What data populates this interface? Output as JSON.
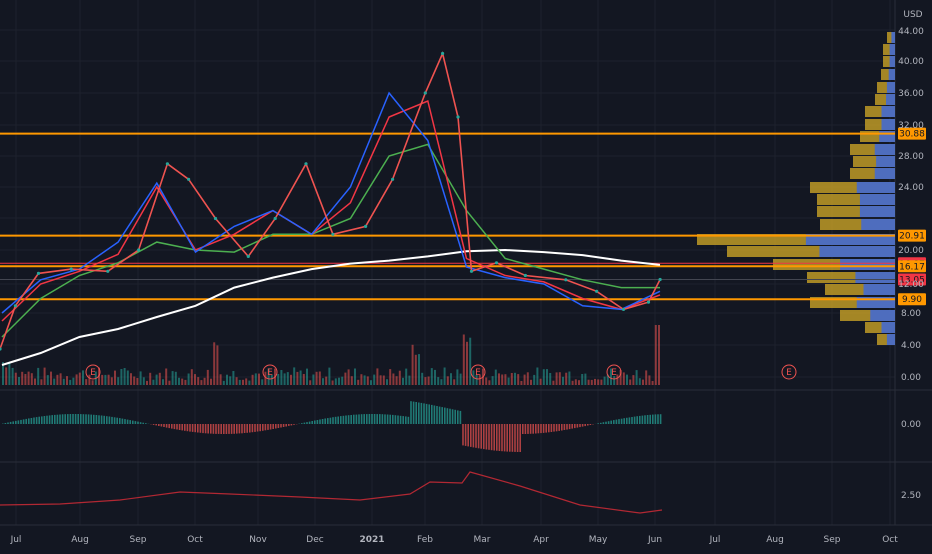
{
  "chart_data": {
    "type": "line",
    "currency_label": "USD",
    "time_axis": [
      "Jul",
      "Aug",
      "Sep",
      "Oct",
      "Nov",
      "Dec",
      "2021",
      "Feb",
      "Mar",
      "Apr",
      "May",
      "Jun",
      "Jul",
      "Aug",
      "Sep",
      "Oct"
    ],
    "price_axis": {
      "ticks": [
        "44.00",
        "40.00",
        "36.00",
        "32.00",
        "28.00",
        "24.00",
        "20.00",
        "12.00",
        "8.00",
        "4.00",
        "0.00"
      ],
      "ylim": [
        0,
        46
      ]
    },
    "horizontal_levels": [
      {
        "label": "30.88",
        "value": 30.88,
        "color": "#ff9800",
        "kind": "level"
      },
      {
        "label": "20.91",
        "value": 20.91,
        "color": "#ff9800",
        "kind": "level"
      },
      {
        "label": "16.87",
        "value": 16.87,
        "color": "#f23645",
        "kind": "price"
      },
      {
        "label": "16.17",
        "value": 16.17,
        "color": "#ff9800",
        "kind": "level"
      },
      {
        "label": "13.05",
        "value": 13.05,
        "color": "#f23645",
        "kind": "tag"
      },
      {
        "label": "9.90",
        "value": 9.9,
        "color": "#ff9800",
        "kind": "level"
      }
    ],
    "earnings_markers": [
      "E",
      "E",
      "E",
      "E",
      "E"
    ],
    "macd_pane": {
      "ticks": [
        "0.00"
      ]
    },
    "third_pane": {
      "ticks": [
        "2.50"
      ]
    },
    "price_series": [
      {
        "date": "2020-06-25",
        "value": 3.5
      },
      {
        "date": "2020-07-03",
        "value": 9.0
      },
      {
        "date": "2020-07-15",
        "value": 14.5
      },
      {
        "date": "2020-08-01",
        "value": 15.5
      },
      {
        "date": "2020-08-20",
        "value": 15.0
      },
      {
        "date": "2020-09-05",
        "value": 20.0
      },
      {
        "date": "2020-09-20",
        "value": 27.0
      },
      {
        "date": "2020-10-01",
        "value": 25.0
      },
      {
        "date": "2020-10-15",
        "value": 22.0
      },
      {
        "date": "2020-11-01",
        "value": 18.5
      },
      {
        "date": "2020-11-15",
        "value": 22.0
      },
      {
        "date": "2020-12-01",
        "value": 27.0
      },
      {
        "date": "2020-12-15",
        "value": 21.0
      },
      {
        "date": "2021-01-01",
        "value": 21.5
      },
      {
        "date": "2021-01-15",
        "value": 25.0
      },
      {
        "date": "2021-02-01",
        "value": 36.0
      },
      {
        "date": "2021-02-10",
        "value": 41.0
      },
      {
        "date": "2021-02-18",
        "value": 33.0
      },
      {
        "date": "2021-02-25",
        "value": 15.0
      },
      {
        "date": "2021-03-10",
        "value": 17.0
      },
      {
        "date": "2021-03-25",
        "value": 14.0
      },
      {
        "date": "2021-04-15",
        "value": 13.0
      },
      {
        "date": "2021-05-01",
        "value": 11.0
      },
      {
        "date": "2021-05-15",
        "value": 8.5
      },
      {
        "date": "2021-05-28",
        "value": 9.5
      },
      {
        "date": "2021-06-03",
        "value": 13.05
      }
    ],
    "moving_averages": [
      {
        "color": "#ffffff",
        "values": [
          1.5,
          3.0,
          5.0,
          6.0,
          7.5,
          9.0,
          11.5,
          13.5,
          15.5,
          16.8,
          17.5,
          18.5,
          19.7,
          20.0,
          19.5,
          18.8,
          17.5,
          16.5
        ]
      },
      {
        "color": "#4caf50",
        "values": [
          5.0,
          10.0,
          14.0,
          17.0,
          20.5,
          20.0,
          19.5,
          21.0,
          21.0,
          22.0,
          28.0,
          29.5,
          22.5,
          18.0,
          15.5,
          13.0,
          11.5,
          11.5
        ]
      },
      {
        "color": "#f23645",
        "values": [
          7.0,
          12.0,
          15.0,
          19.0,
          24.0,
          20.0,
          21.0,
          22.5,
          21.0,
          23.0,
          33.0,
          35.0,
          18.0,
          14.0,
          12.5,
          10.0,
          8.5,
          10.5
        ]
      },
      {
        "color": "#2962ff",
        "values": [
          8.0,
          13.0,
          15.5,
          20.5,
          24.5,
          19.5,
          21.5,
          22.5,
          21.0,
          24.0,
          36.0,
          30.0,
          16.0,
          13.5,
          12.0,
          9.0,
          8.5,
          11.0
        ]
      }
    ]
  }
}
